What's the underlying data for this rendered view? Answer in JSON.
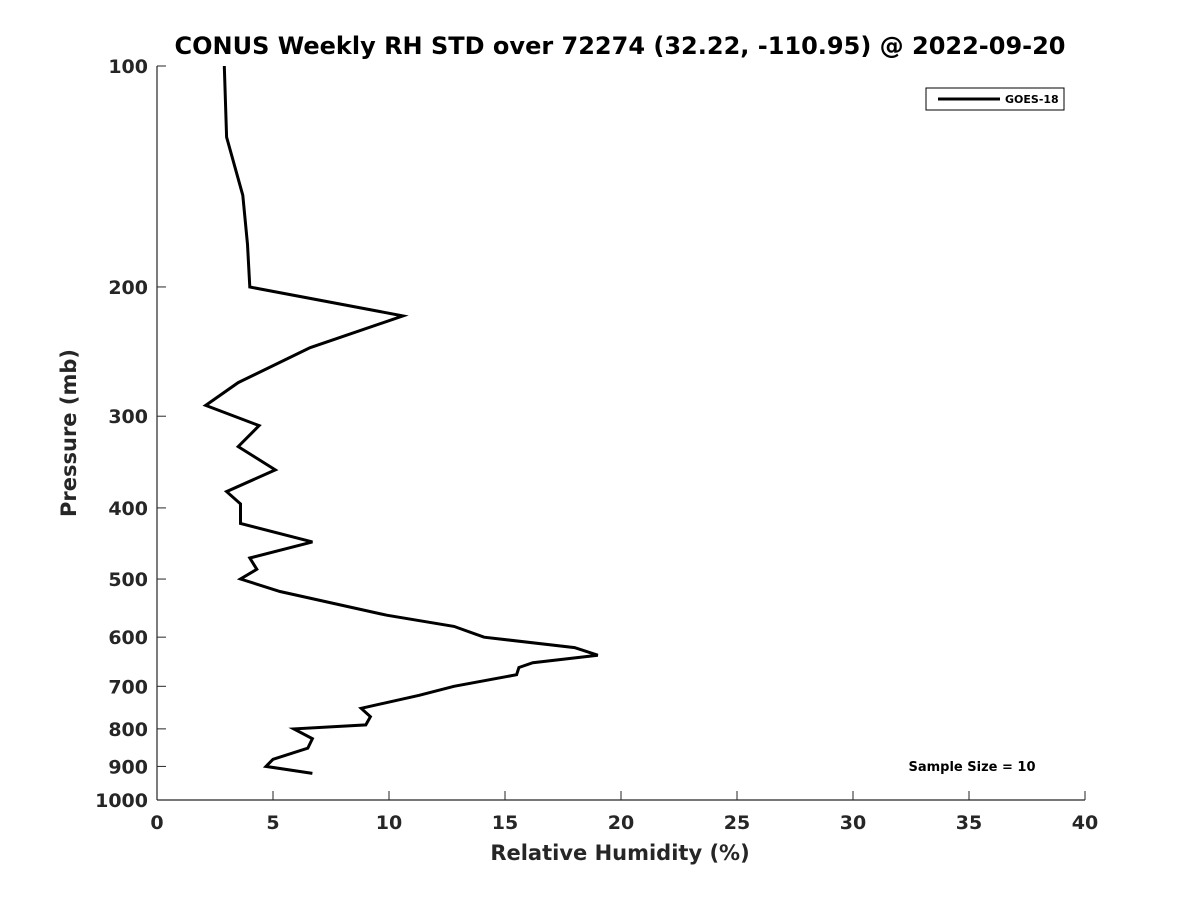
{
  "chart_data": {
    "type": "line",
    "title": "CONUS Weekly RH STD over 72274 (32.22, -110.95) @ 2022-09-20",
    "xlabel": "Relative Humidity (%)",
    "ylabel": "Pressure (mb)",
    "xlim": [
      0,
      40
    ],
    "ylim": [
      100,
      1000
    ],
    "y_scale": "log",
    "y_reversed": true,
    "x_ticks": [
      "0",
      "5",
      "10",
      "15",
      "20",
      "25",
      "30",
      "35",
      "40"
    ],
    "y_ticks": [
      "100",
      "200",
      "300",
      "400",
      "500",
      "600",
      "700",
      "800",
      "900",
      "1000"
    ],
    "grid": false,
    "legend_position": "top-right",
    "annotation": "Sample Size = 10",
    "series": [
      {
        "name": "GOES-18",
        "color": "#000000",
        "x": [
          2.9,
          3.0,
          3.7,
          3.9,
          4.0,
          10.6,
          6.6,
          3.5,
          2.1,
          4.4,
          3.5,
          5.1,
          3.0,
          3.6,
          3.6,
          3.6,
          6.7,
          4.0,
          4.3,
          3.6,
          5.3,
          9.9,
          12.8,
          14.1,
          18.0,
          19.0,
          16.2,
          15.6,
          15.5,
          12.8,
          11.3,
          8.8,
          9.2,
          9.0,
          5.9,
          6.7,
          6.5,
          5.0,
          4.7,
          6.7
        ],
        "y": [
          100,
          125,
          150,
          175,
          200,
          219,
          242,
          270,
          290,
          309,
          330,
          355,
          380,
          395,
          405,
          420,
          445,
          468,
          485,
          500,
          520,
          560,
          580,
          600,
          620,
          635,
          650,
          660,
          675,
          700,
          720,
          750,
          770,
          790,
          800,
          825,
          850,
          880,
          900,
          920
        ]
      }
    ]
  }
}
